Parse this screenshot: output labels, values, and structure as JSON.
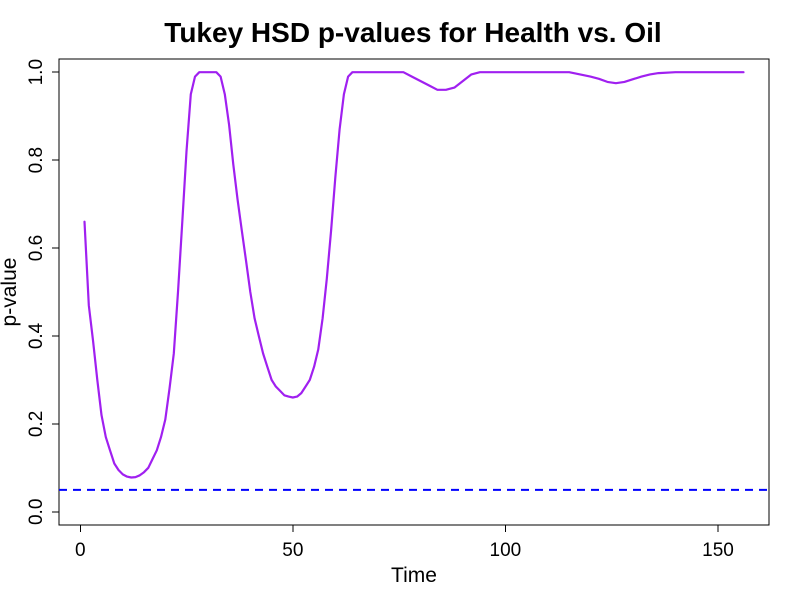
{
  "chart_data": {
    "type": "line",
    "title": "Tukey HSD p-values for Health vs. Oil",
    "xlabel": "Time",
    "ylabel": "p-value",
    "xlim": [
      -5,
      162
    ],
    "ylim": [
      -0.03,
      1.03
    ],
    "xticks": [
      0,
      50,
      100,
      150
    ],
    "xtick_labels": [
      "0",
      "50",
      "100",
      "150"
    ],
    "yticks": [
      0.0,
      0.2,
      0.4,
      0.6,
      0.8,
      1.0
    ],
    "ytick_labels": [
      "0.0",
      "0.2",
      "0.4",
      "0.6",
      "0.8",
      "1.0"
    ],
    "grid": false,
    "legend": "none",
    "series": [
      {
        "color": "#a020f0",
        "style": "solid",
        "x": [
          1,
          2,
          3,
          4,
          5,
          6,
          7,
          8,
          9,
          10,
          11,
          12,
          13,
          14,
          15,
          16,
          17,
          18,
          19,
          20,
          21,
          22,
          23,
          24,
          25,
          26,
          27,
          28,
          29,
          30,
          31,
          32,
          33,
          34,
          35,
          36,
          37,
          38,
          39,
          40,
          41,
          42,
          43,
          44,
          45,
          46,
          47,
          48,
          49,
          50,
          51,
          52,
          53,
          54,
          55,
          56,
          57,
          58,
          59,
          60,
          61,
          62,
          63,
          64,
          65,
          66,
          67,
          68,
          70,
          72,
          74,
          76,
          78,
          80,
          82,
          84,
          86,
          88,
          90,
          92,
          94,
          96,
          98,
          100,
          105,
          110,
          115,
          120,
          122,
          124,
          126,
          128,
          130,
          132,
          134,
          136,
          140,
          145,
          150,
          156
        ],
        "y": [
          0.66,
          0.47,
          0.39,
          0.3,
          0.22,
          0.17,
          0.14,
          0.11,
          0.095,
          0.085,
          0.08,
          0.078,
          0.079,
          0.083,
          0.09,
          0.1,
          0.12,
          0.14,
          0.17,
          0.21,
          0.28,
          0.36,
          0.5,
          0.66,
          0.82,
          0.95,
          0.99,
          1.0,
          1.0,
          1.0,
          1.0,
          1.0,
          0.99,
          0.95,
          0.88,
          0.79,
          0.71,
          0.64,
          0.57,
          0.5,
          0.44,
          0.4,
          0.36,
          0.33,
          0.3,
          0.285,
          0.275,
          0.265,
          0.262,
          0.26,
          0.262,
          0.27,
          0.285,
          0.3,
          0.33,
          0.37,
          0.44,
          0.53,
          0.64,
          0.76,
          0.87,
          0.95,
          0.99,
          1.0,
          1.0,
          1.0,
          1.0,
          1.0,
          1.0,
          1.0,
          1.0,
          1.0,
          0.99,
          0.98,
          0.97,
          0.96,
          0.96,
          0.965,
          0.98,
          0.995,
          1.0,
          1.0,
          1.0,
          1.0,
          1.0,
          1.0,
          1.0,
          0.99,
          0.985,
          0.978,
          0.975,
          0.978,
          0.984,
          0.99,
          0.995,
          0.998,
          1.0,
          1.0,
          1.0,
          1.0
        ]
      },
      {
        "color": "#0000ff",
        "style": "dashed",
        "type": "hline",
        "y": 0.05
      }
    ]
  }
}
